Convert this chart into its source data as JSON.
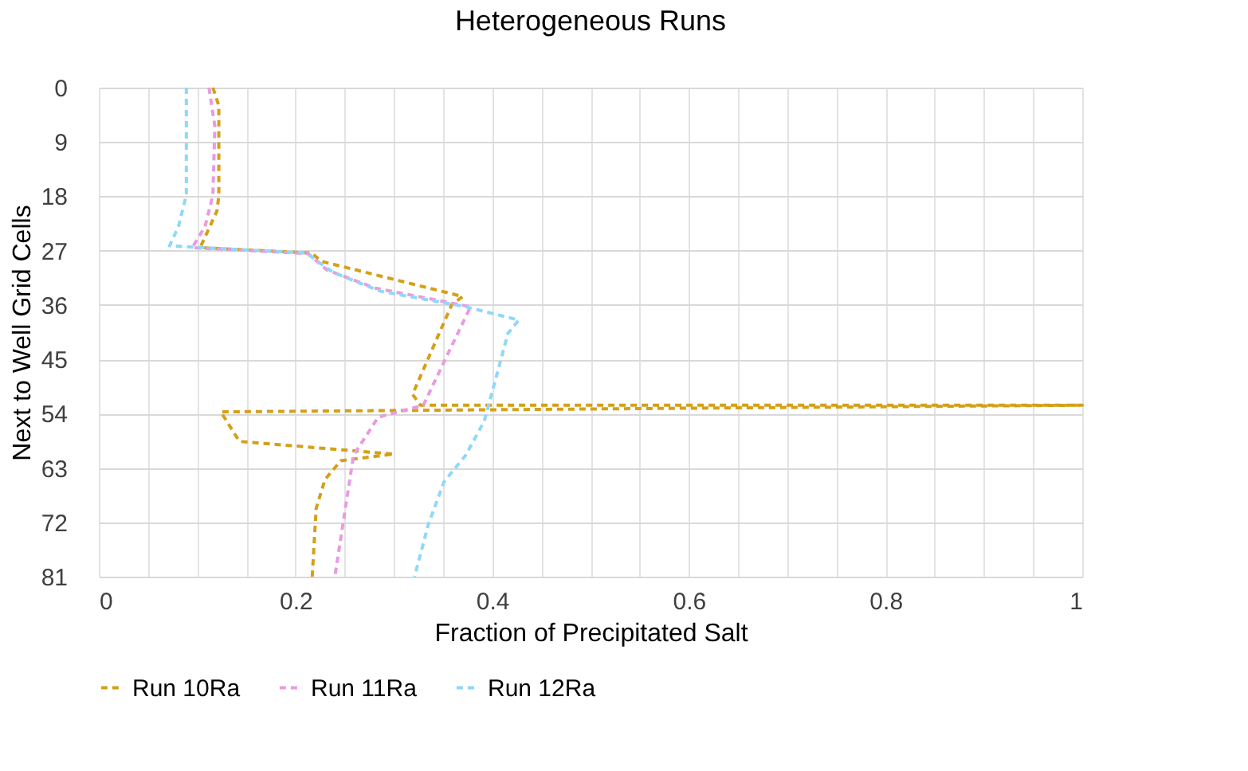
{
  "chart_data": {
    "type": "line",
    "title": "Heterogeneous Runs",
    "xlabel": "Fraction of Precipitated Salt",
    "ylabel": "Next to Well Grid Cells",
    "xlim": [
      0,
      1
    ],
    "ylim": [
      81,
      0
    ],
    "xticks": [
      0,
      {
        "value": 0.05,
        "label": null
      },
      {
        "value": 0.1,
        "label": null
      },
      {
        "value": 0.15,
        "label": null
      },
      0.2,
      {
        "value": 0.25,
        "label": null
      },
      {
        "value": 0.3,
        "label": null
      },
      {
        "value": 0.35,
        "label": null
      },
      0.4,
      {
        "value": 0.45,
        "label": null
      },
      {
        "value": 0.5,
        "label": null
      },
      {
        "value": 0.55,
        "label": null
      },
      0.6,
      {
        "value": 0.65,
        "label": null
      },
      {
        "value": 0.7,
        "label": null
      },
      {
        "value": 0.75,
        "label": null
      },
      0.8,
      {
        "value": 0.85,
        "label": null
      },
      {
        "value": 0.9,
        "label": null
      },
      {
        "value": 0.95,
        "label": null
      },
      1
    ],
    "yticks": [
      0,
      9,
      18,
      27,
      36,
      45,
      54,
      63,
      72,
      81
    ],
    "grid": true,
    "legend": "bottom",
    "line_style": "dashed",
    "marker": "none",
    "series": [
      {
        "name": "Run 10Ra",
        "color": "#d4a017",
        "x": [
          0.116,
          0.122,
          0.122,
          0.12,
          0.103,
          0.216,
          0.227,
          0.37,
          0.359,
          0.319,
          0.327,
          1.0,
          0.124,
          0.143,
          0.3,
          0.246,
          0.23,
          0.221,
          0.217
        ],
        "values": [
          0,
          3,
          18,
          20.5,
          26.5,
          27.4,
          28.8,
          34.6,
          35.9,
          50.8,
          52.6,
          52.6,
          53.7,
          58.6,
          60.7,
          61.8,
          64.9,
          69.7,
          81
        ]
      },
      {
        "name": "Run 11Ra",
        "color": "#e99be0",
        "x": [
          0.112,
          0.118,
          0.116,
          0.108,
          0.095,
          0.213,
          0.232,
          0.281,
          0.378,
          0.357,
          0.33,
          0.284,
          0.259,
          0.24
        ],
        "values": [
          0,
          6.4,
          17.8,
          23,
          26.5,
          27.5,
          30.2,
          33.2,
          36.3,
          43.4,
          52.6,
          54.6,
          60.9,
          81
        ]
      },
      {
        "name": "Run 12Ra",
        "color": "#8fd8f8",
        "x": [
          0.089,
          0.089,
          0.081,
          0.072,
          0.211,
          0.238,
          0.286,
          0.373,
          0.427,
          0.416,
          0.403,
          0.392,
          0.373,
          0.351,
          0.335,
          0.321
        ],
        "values": [
          0,
          17.8,
          23,
          26.2,
          27.4,
          30.6,
          33.7,
          36.3,
          38.5,
          40.7,
          48.6,
          55.2,
          60.9,
          65.3,
          72.4,
          81
        ]
      }
    ]
  }
}
